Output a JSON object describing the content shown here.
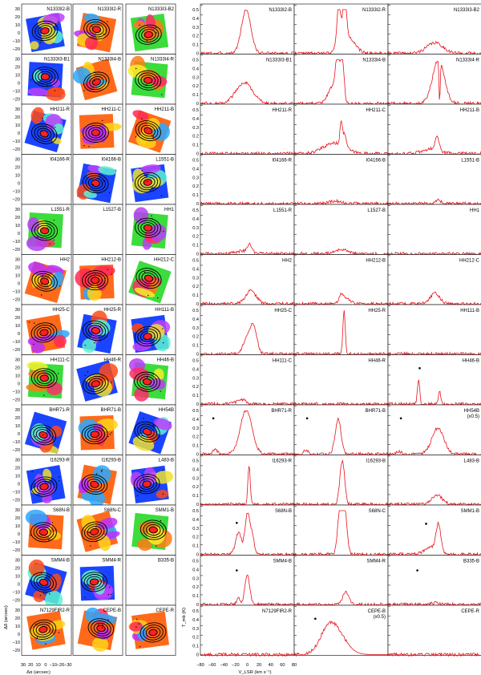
{
  "maps": [
    [
      {
        "label": "N1333I2-B",
        "palette": "cool"
      },
      {
        "label": "N1333I2-R",
        "palette": "warm"
      },
      {
        "label": "N1333I3-B2",
        "palette": "green"
      }
    ],
    [
      {
        "label": "N1333I3-B1",
        "palette": "cool"
      },
      {
        "label": "N1333I4-B",
        "palette": "warm"
      },
      {
        "label": "N1333I4-R",
        "palette": "green"
      }
    ],
    [
      {
        "label": "HH211-R",
        "palette": "cool"
      },
      {
        "label": "HH211-C",
        "palette": "warm"
      },
      {
        "label": "HH211-B",
        "palette": "warm"
      }
    ],
    [
      {
        "label": "I04166-R",
        "palette": "none"
      },
      {
        "label": "I04166-B",
        "palette": "cool"
      },
      {
        "label": "L1551-B",
        "palette": "cool"
      }
    ],
    [
      {
        "label": "L1551-R",
        "palette": "green"
      },
      {
        "label": "L1527-B",
        "palette": "none"
      },
      {
        "label": "HH1",
        "palette": "green"
      }
    ],
    [
      {
        "label": "HH2",
        "palette": "warm"
      },
      {
        "label": "HH212-B",
        "palette": "warm"
      },
      {
        "label": "HH212-C",
        "palette": "green"
      }
    ],
    [
      {
        "label": "HH25-C",
        "palette": "warm"
      },
      {
        "label": "HH25-R",
        "palette": "cool"
      },
      {
        "label": "HH111-B",
        "palette": "cool"
      }
    ],
    [
      {
        "label": "HH111-C",
        "palette": "green"
      },
      {
        "label": "HH46-R",
        "palette": "cool"
      },
      {
        "label": "HH46-B",
        "palette": "green"
      }
    ],
    [
      {
        "label": "BHR71-R",
        "palette": "cool"
      },
      {
        "label": "BHR71-B",
        "palette": "warm"
      },
      {
        "label": "HH54B",
        "palette": "cool"
      }
    ],
    [
      {
        "label": "I16293-R",
        "palette": "cool"
      },
      {
        "label": "I16293-B",
        "palette": "warm"
      },
      {
        "label": "L483-B",
        "palette": "cool"
      }
    ],
    [
      {
        "label": "S68N-B",
        "palette": "warm"
      },
      {
        "label": "S68N-C",
        "palette": "warm"
      },
      {
        "label": "SMM1-B",
        "palette": "green"
      }
    ],
    [
      {
        "label": "SMM4-B",
        "palette": "cool"
      },
      {
        "label": "SMM4-R",
        "palette": "cool"
      },
      {
        "label": "B335-B",
        "palette": "none"
      }
    ],
    [
      {
        "label": "N7129FIR2-R",
        "palette": "warm"
      },
      {
        "label": "CEPE-B",
        "palette": "warm"
      },
      {
        "label": "CEPE-R",
        "palette": "warm"
      }
    ]
  ],
  "map_axes": {
    "ylabel": "Δδ (arcsec)",
    "xlabel": "Δα (arcsec)",
    "yticks": [
      "30",
      "20",
      "10",
      "0",
      "−10",
      "−20"
    ],
    "xticks": [
      "30",
      "20",
      "10",
      "0",
      "−10",
      "−20",
      "−30"
    ]
  },
  "chart_data": {
    "type": "line",
    "x_range": [
      -80,
      80
    ],
    "y_range": [
      0,
      0.5
    ],
    "xlabel": "V_LSR (km s⁻¹)",
    "ylabel": "T_mb (K)",
    "xticks": [
      "−80",
      "−60",
      "−40",
      "−20",
      "0",
      "20",
      "40",
      "60",
      "80"
    ],
    "yticks": [
      "0",
      "0.1",
      "0.2",
      "0.3",
      "0.4",
      "0.5"
    ],
    "panels": [
      [
        {
          "label": "N1333I2-B",
          "peaks": [
            [
              -2,
              0.5,
              8
            ]
          ]
        },
        {
          "label": "N1333I2-R",
          "peaks": [
            [
              -4,
              0.5,
              3
            ],
            [
              6,
              0.5,
              3
            ],
            [
              10,
              0.2,
              12
            ]
          ]
        },
        {
          "label": "N1333I3-B2",
          "peaks": [
            [
              0,
              0.12,
              14
            ]
          ]
        }
      ],
      [
        {
          "label": "N1333I3-B1",
          "peaks": [
            [
              -5,
              0.24,
              14
            ]
          ]
        },
        {
          "label": "N1333I4-B",
          "peaks": [
            [
              -6,
              0.5,
              3
            ],
            [
              2,
              0.5,
              3
            ],
            [
              -14,
              0.2,
              8
            ]
          ]
        },
        {
          "label": "N1333I4-R",
          "peaks": [
            [
              6,
              0.5,
              10
            ]
          ],
          "absorb": 8
        }
      ],
      [
        {
          "label": "HH211-R",
          "peaks": []
        },
        {
          "label": "HH211-C",
          "peaks": [
            [
              -12,
              0.12,
              18
            ],
            [
              0,
              0.27,
              2
            ],
            [
              6,
              0.15,
              3
            ]
          ]
        },
        {
          "label": "HH211-B",
          "peaks": [
            [
              4,
              0.15,
              4
            ],
            [
              -8,
              0.05,
              14
            ]
          ]
        }
      ],
      [
        {
          "label": "I04166-R",
          "peaks": []
        },
        {
          "label": "I04166-B",
          "peaks": [
            [
              -10,
              0.03,
              10
            ]
          ]
        },
        {
          "label": "L1551-B",
          "peaks": [
            [
              6,
              0.04,
              4
            ]
          ]
        }
      ],
      [
        {
          "label": "L1551-R",
          "peaks": [
            [
              4,
              0.1,
              4
            ],
            [
              -10,
              0.03,
              10
            ]
          ]
        },
        {
          "label": "L1527-B",
          "peaks": [
            [
              0,
              0.05,
              10
            ]
          ]
        },
        {
          "label": "HH1",
          "peaks": []
        }
      ],
      [
        {
          "label": "HH2",
          "peaks": [
            [
              6,
              0.15,
              9
            ]
          ]
        },
        {
          "label": "HH212-B",
          "peaks": [
            [
              0,
              0.1,
              4
            ],
            [
              10,
              0.06,
              6
            ]
          ]
        },
        {
          "label": "HH212-C",
          "peaks": [
            [
              0,
              0.12,
              8
            ]
          ]
        }
      ],
      [
        {
          "label": "HH25-C",
          "peaks": [
            [
              -2,
              0.15,
              6
            ],
            [
              10,
              0.32,
              6
            ]
          ]
        },
        {
          "label": "HH25-R",
          "peaks": [
            [
              5,
              0.5,
              2
            ]
          ]
        },
        {
          "label": "HH111-B",
          "peaks": []
        }
      ],
      [
        {
          "label": "HH111-C",
          "peaks": [
            [
              -10,
              0.05,
              8
            ]
          ]
        },
        {
          "label": "HH46-R",
          "peaks": []
        },
        {
          "label": "HH46-B",
          "peaks": [
            [
              -28,
              0.28,
              2
            ],
            [
              8,
              0.15,
              2
            ]
          ],
          "star": [
            -26,
            0.41
          ]
        }
      ],
      [
        {
          "label": "BHR71-R",
          "peaks": [
            [
              -2,
              0.5,
              10
            ],
            [
              -55,
              0.05,
              4
            ]
          ],
          "star": [
            -58,
            0.41
          ]
        },
        {
          "label": "BHR71-B",
          "peaks": [
            [
              -5,
              0.4,
              5
            ],
            [
              -60,
              0.05,
              4
            ]
          ],
          "star": [
            -58,
            0.41
          ]
        },
        {
          "label": "HH54B",
          "note": "(x0.5)",
          "peaks": [
            [
              5,
              0.3,
              10
            ],
            [
              -62,
              0.03,
              4
            ]
          ],
          "star": [
            -58,
            0.41
          ]
        }
      ],
      [
        {
          "label": "I16293-R",
          "peaks": [
            [
              3,
              0.45,
              2
            ]
          ]
        },
        {
          "label": "I16293-B",
          "peaks": [
            [
              2,
              0.5,
              4
            ]
          ]
        },
        {
          "label": "L483-B",
          "peaks": [
            [
              4,
              0.1,
              9
            ]
          ]
        }
      ],
      [
        {
          "label": "S68N-B",
          "peaks": [
            [
              -15,
              0.25,
              5
            ],
            [
              0,
              0.45,
              4
            ],
            [
              8,
              0.2,
              4
            ]
          ],
          "star": [
            -18,
            0.36
          ]
        },
        {
          "label": "S68N-C",
          "peaks": [
            [
              -2,
              0.5,
              4
            ],
            [
              6,
              0.5,
              4
            ]
          ]
        },
        {
          "label": "SMM1-B",
          "peaks": [
            [
              6,
              0.3,
              4
            ],
            [
              -5,
              0.08,
              12
            ]
          ],
          "star": [
            -15,
            0.35
          ]
        }
      ],
      [
        {
          "label": "SMM4-B",
          "peaks": [
            [
              -15,
              0.08,
              3
            ],
            [
              0,
              0.35,
              4
            ]
          ],
          "star": [
            -18,
            0.39
          ]
        },
        {
          "label": "SMM4-R",
          "peaks": [
            [
              8,
              0.14,
              5
            ]
          ]
        },
        {
          "label": "B335-B",
          "peaks": [
            [
              0,
              0.02,
              6
            ]
          ],
          "star": [
            -30,
            0.39
          ]
        }
      ],
      [
        {
          "label": "N7129FIR2-R",
          "peaks": []
        },
        {
          "label": "CEPE-B",
          "note": "(x0.5)",
          "peaks": [
            [
              -12,
              0.3,
              18
            ],
            [
              -25,
              0.1,
              12
            ]
          ],
          "star": [
            -44,
            0.41
          ],
          "cutoff": 10
        },
        {
          "label": "CEPE-R",
          "peaks": []
        }
      ]
    ]
  }
}
